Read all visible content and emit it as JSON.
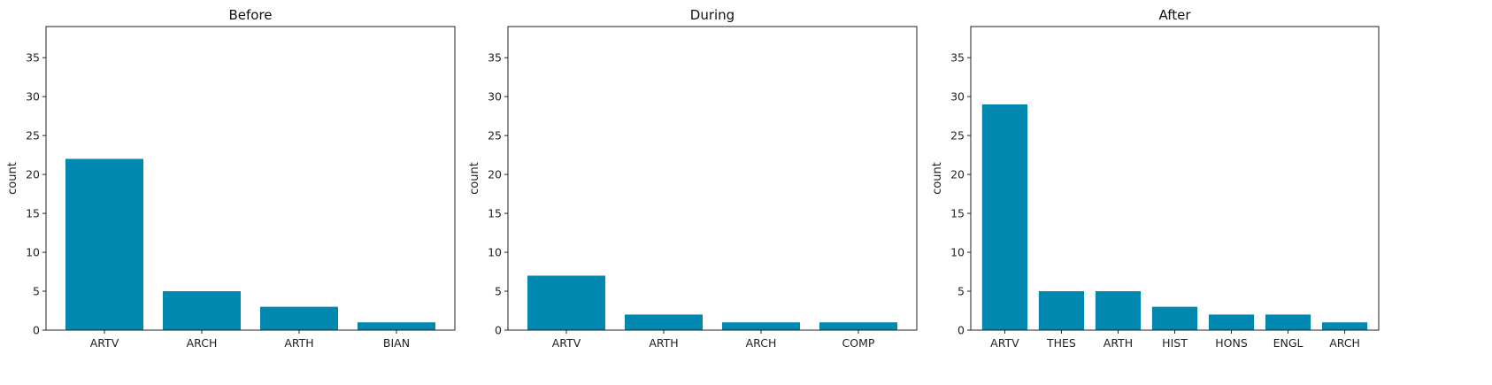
{
  "figure": {
    "background": "#ffffff"
  },
  "bar_color": "#0088b0",
  "chart_data": [
    {
      "type": "bar",
      "title": "Before",
      "ylabel": "count",
      "xlabel": "",
      "ylim": [
        0,
        39
      ],
      "yticks": [
        0,
        5,
        10,
        15,
        20,
        25,
        30,
        35
      ],
      "categories": [
        "ARTV",
        "ARCH",
        "ARTH",
        "BIAN"
      ],
      "values": [
        22,
        5,
        3,
        1
      ]
    },
    {
      "type": "bar",
      "title": "During",
      "ylabel": "count",
      "xlabel": "",
      "ylim": [
        0,
        39
      ],
      "yticks": [
        0,
        5,
        10,
        15,
        20,
        25,
        30,
        35
      ],
      "categories": [
        "ARTV",
        "ARTH",
        "ARCH",
        "COMP"
      ],
      "values": [
        7,
        2,
        1,
        1
      ]
    },
    {
      "type": "bar",
      "title": "After",
      "ylabel": "count",
      "xlabel": "",
      "ylim": [
        0,
        39
      ],
      "yticks": [
        0,
        5,
        10,
        15,
        20,
        25,
        30,
        35
      ],
      "categories": [
        "ARTV",
        "THES",
        "ARTH",
        "HIST",
        "HONS",
        "ENGL",
        "ARCH"
      ],
      "values": [
        29,
        5,
        5,
        3,
        2,
        2,
        1
      ]
    }
  ]
}
